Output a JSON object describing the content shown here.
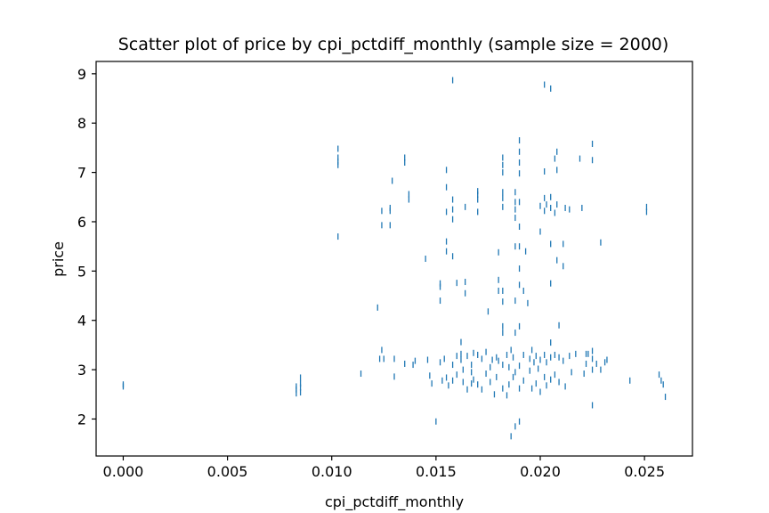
{
  "chart_data": {
    "type": "scatter",
    "title": "Scatter plot of price by cpi_pctdiff_monthly (sample size = 2000)",
    "xlabel": "cpi_pctdiff_monthly",
    "ylabel": "price",
    "xlim": [
      -0.0013,
      0.0273
    ],
    "ylim": [
      1.25,
      9.25
    ],
    "x_ticks": [
      0.0,
      0.005,
      0.01,
      0.015,
      0.02,
      0.025
    ],
    "x_tick_labels": [
      "0.000",
      "0.005",
      "0.010",
      "0.015",
      "0.020",
      "0.025"
    ],
    "y_ticks": [
      2,
      3,
      4,
      5,
      6,
      7,
      8,
      9
    ],
    "y_tick_labels": [
      "2",
      "3",
      "4",
      "5",
      "6",
      "7",
      "8",
      "9"
    ],
    "grid": false,
    "marker": "|",
    "color": "#1f77b4",
    "series": [
      {
        "points": [
          [
            0.0,
            2.66
          ],
          [
            0.0,
            2.7
          ],
          [
            0.0083,
            2.52
          ],
          [
            0.0083,
            2.6
          ],
          [
            0.0083,
            2.66
          ],
          [
            0.0085,
            2.54
          ],
          [
            0.0085,
            2.64
          ],
          [
            0.0085,
            2.72
          ],
          [
            0.0085,
            2.84
          ],
          [
            0.0103,
            7.15
          ],
          [
            0.0103,
            7.22
          ],
          [
            0.0103,
            7.3
          ],
          [
            0.0103,
            7.48
          ],
          [
            0.0103,
            5.7
          ],
          [
            0.0114,
            2.92
          ],
          [
            0.0122,
            4.26
          ],
          [
            0.0123,
            3.22
          ],
          [
            0.0124,
            3.4
          ],
          [
            0.0125,
            3.22
          ],
          [
            0.0124,
            6.22
          ],
          [
            0.0124,
            5.93
          ],
          [
            0.0128,
            6.28
          ],
          [
            0.0128,
            6.22
          ],
          [
            0.0128,
            5.93
          ],
          [
            0.0129,
            6.83
          ],
          [
            0.013,
            3.22
          ],
          [
            0.013,
            2.86
          ],
          [
            0.0135,
            7.2
          ],
          [
            0.0135,
            7.3
          ],
          [
            0.0135,
            3.12
          ],
          [
            0.0137,
            6.45
          ],
          [
            0.0137,
            6.56
          ],
          [
            0.0139,
            3.1
          ],
          [
            0.014,
            3.18
          ],
          [
            0.0145,
            5.25
          ],
          [
            0.0146,
            3.2
          ],
          [
            0.0147,
            2.88
          ],
          [
            0.0148,
            2.72
          ],
          [
            0.015,
            1.95
          ],
          [
            0.0152,
            4.4
          ],
          [
            0.0152,
            4.68
          ],
          [
            0.0152,
            4.75
          ],
          [
            0.0152,
            3.15
          ],
          [
            0.0153,
            2.78
          ],
          [
            0.0155,
            7.05
          ],
          [
            0.0155,
            6.7
          ],
          [
            0.0155,
            6.2
          ],
          [
            0.0155,
            5.6
          ],
          [
            0.0155,
            5.4
          ],
          [
            0.0154,
            3.22
          ],
          [
            0.0155,
            2.84
          ],
          [
            0.0156,
            2.68
          ],
          [
            0.0158,
            8.87
          ],
          [
            0.0158,
            6.45
          ],
          [
            0.0158,
            6.25
          ],
          [
            0.0158,
            6.05
          ],
          [
            0.0158,
            5.3
          ],
          [
            0.0158,
            3.1
          ],
          [
            0.0158,
            2.78
          ],
          [
            0.016,
            4.76
          ],
          [
            0.016,
            3.28
          ],
          [
            0.016,
            2.9
          ],
          [
            0.0162,
            3.56
          ],
          [
            0.0162,
            3.32
          ],
          [
            0.0162,
            3.2
          ],
          [
            0.0163,
            3.0
          ],
          [
            0.0163,
            2.75
          ],
          [
            0.0164,
            6.3
          ],
          [
            0.0164,
            4.55
          ],
          [
            0.0164,
            4.78
          ],
          [
            0.0165,
            3.28
          ],
          [
            0.0165,
            2.6
          ],
          [
            0.0167,
            3.1
          ],
          [
            0.0167,
            2.95
          ],
          [
            0.0167,
            2.72
          ],
          [
            0.0168,
            3.34
          ],
          [
            0.0168,
            2.8
          ],
          [
            0.017,
            6.45
          ],
          [
            0.017,
            6.55
          ],
          [
            0.017,
            6.62
          ],
          [
            0.017,
            6.2
          ],
          [
            0.017,
            3.3
          ],
          [
            0.017,
            2.7
          ],
          [
            0.0172,
            3.22
          ],
          [
            0.0172,
            2.6
          ],
          [
            0.0174,
            2.92
          ],
          [
            0.0174,
            3.36
          ],
          [
            0.0175,
            4.18
          ],
          [
            0.0176,
            3.05
          ],
          [
            0.0176,
            2.75
          ],
          [
            0.0177,
            3.2
          ],
          [
            0.0178,
            2.5
          ],
          [
            0.0179,
            3.25
          ],
          [
            0.0179,
            2.85
          ],
          [
            0.018,
            5.38
          ],
          [
            0.018,
            4.82
          ],
          [
            0.018,
            4.6
          ],
          [
            0.018,
            3.18
          ],
          [
            0.0182,
            7.3
          ],
          [
            0.0182,
            7.15
          ],
          [
            0.0182,
            7.0
          ],
          [
            0.0182,
            6.6
          ],
          [
            0.0182,
            6.48
          ],
          [
            0.0182,
            6.3
          ],
          [
            0.0182,
            4.6
          ],
          [
            0.0182,
            4.38
          ],
          [
            0.0182,
            3.88
          ],
          [
            0.0182,
            3.75
          ],
          [
            0.0182,
            3.1
          ],
          [
            0.0182,
            2.62
          ],
          [
            0.0184,
            3.3
          ],
          [
            0.0184,
            2.48
          ],
          [
            0.0185,
            3.05
          ],
          [
            0.0185,
            2.7
          ],
          [
            0.0186,
            3.4
          ],
          [
            0.0186,
            1.65
          ],
          [
            0.0187,
            3.25
          ],
          [
            0.0187,
            2.85
          ],
          [
            0.0188,
            6.6
          ],
          [
            0.0188,
            6.4
          ],
          [
            0.0188,
            6.25
          ],
          [
            0.0188,
            6.08
          ],
          [
            0.0188,
            5.5
          ],
          [
            0.0188,
            4.4
          ],
          [
            0.0188,
            3.75
          ],
          [
            0.0188,
            2.95
          ],
          [
            0.0188,
            1.85
          ],
          [
            0.019,
            7.65
          ],
          [
            0.019,
            7.42
          ],
          [
            0.019,
            7.2
          ],
          [
            0.019,
            6.98
          ],
          [
            0.019,
            6.4
          ],
          [
            0.019,
            5.9
          ],
          [
            0.019,
            5.5
          ],
          [
            0.019,
            5.05
          ],
          [
            0.019,
            4.72
          ],
          [
            0.019,
            3.88
          ],
          [
            0.019,
            3.08
          ],
          [
            0.019,
            2.62
          ],
          [
            0.019,
            1.95
          ],
          [
            0.0192,
            4.6
          ],
          [
            0.0192,
            3.3
          ],
          [
            0.0192,
            2.78
          ],
          [
            0.0193,
            5.4
          ],
          [
            0.0194,
            4.35
          ],
          [
            0.0195,
            3.22
          ],
          [
            0.0195,
            2.98
          ],
          [
            0.0196,
            3.4
          ],
          [
            0.0196,
            2.62
          ],
          [
            0.0197,
            3.15
          ],
          [
            0.0198,
            3.28
          ],
          [
            0.0198,
            2.72
          ],
          [
            0.0199,
            3.02
          ],
          [
            0.02,
            6.32
          ],
          [
            0.02,
            5.8
          ],
          [
            0.02,
            3.2
          ],
          [
            0.02,
            2.55
          ],
          [
            0.0202,
            8.78
          ],
          [
            0.0202,
            7.02
          ],
          [
            0.0202,
            6.48
          ],
          [
            0.0202,
            6.22
          ],
          [
            0.0202,
            3.3
          ],
          [
            0.0202,
            2.85
          ],
          [
            0.0203,
            6.35
          ],
          [
            0.0203,
            3.15
          ],
          [
            0.0203,
            2.68
          ],
          [
            0.0205,
            8.7
          ],
          [
            0.0205,
            6.5
          ],
          [
            0.0205,
            6.28
          ],
          [
            0.0205,
            5.55
          ],
          [
            0.0205,
            4.75
          ],
          [
            0.0205,
            3.55
          ],
          [
            0.0205,
            3.25
          ],
          [
            0.0205,
            2.8
          ],
          [
            0.0207,
            7.28
          ],
          [
            0.0207,
            6.18
          ],
          [
            0.0207,
            3.3
          ],
          [
            0.0207,
            2.9
          ],
          [
            0.0208,
            7.42
          ],
          [
            0.0208,
            7.05
          ],
          [
            0.0208,
            6.35
          ],
          [
            0.0208,
            5.22
          ],
          [
            0.0209,
            3.9
          ],
          [
            0.0209,
            3.25
          ],
          [
            0.0209,
            2.75
          ],
          [
            0.0211,
            5.55
          ],
          [
            0.0211,
            5.1
          ],
          [
            0.0211,
            3.18
          ],
          [
            0.0212,
            6.28
          ],
          [
            0.0212,
            2.66
          ],
          [
            0.0214,
            6.25
          ],
          [
            0.0214,
            3.28
          ],
          [
            0.0215,
            2.95
          ],
          [
            0.0217,
            3.32
          ],
          [
            0.0219,
            7.28
          ],
          [
            0.022,
            6.28
          ],
          [
            0.0221,
            2.92
          ],
          [
            0.0222,
            3.32
          ],
          [
            0.0222,
            3.12
          ],
          [
            0.0223,
            3.32
          ],
          [
            0.0225,
            7.58
          ],
          [
            0.0225,
            7.25
          ],
          [
            0.0225,
            3.38
          ],
          [
            0.0225,
            3.22
          ],
          [
            0.0225,
            3.0
          ],
          [
            0.0225,
            2.28
          ],
          [
            0.0227,
            3.12
          ],
          [
            0.0229,
            5.58
          ],
          [
            0.0229,
            3.0
          ],
          [
            0.0231,
            3.15
          ],
          [
            0.0232,
            3.2
          ],
          [
            0.0243,
            2.78
          ],
          [
            0.0251,
            6.2
          ],
          [
            0.0251,
            6.3
          ],
          [
            0.0257,
            2.9
          ],
          [
            0.0258,
            2.78
          ],
          [
            0.0259,
            2.7
          ],
          [
            0.026,
            2.45
          ]
        ]
      }
    ]
  }
}
